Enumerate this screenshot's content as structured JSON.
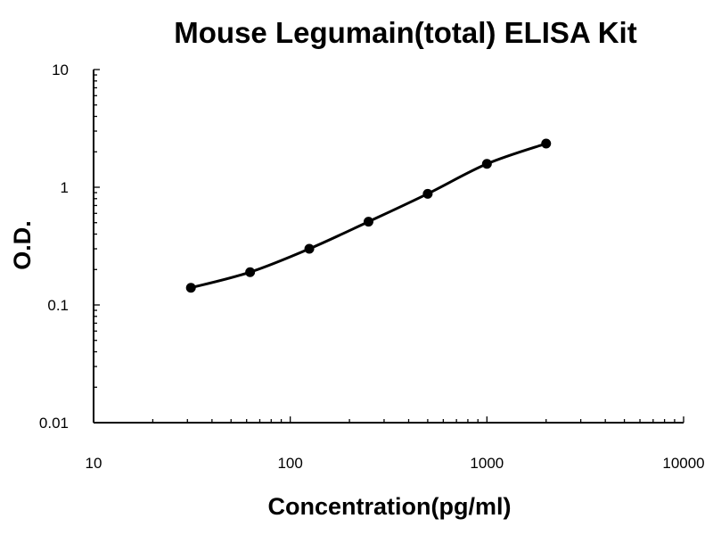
{
  "chart_data": {
    "type": "scatter",
    "title": "Mouse Legumain(total) ELISA Kit",
    "xlabel": "Concentration(pg/ml)",
    "ylabel": "O.D.",
    "xscale": "log",
    "yscale": "log",
    "xlim": [
      10,
      10000
    ],
    "ylim": [
      0.01,
      10
    ],
    "xticks": [
      "10",
      "100",
      "1000",
      "10000"
    ],
    "yticks": [
      "0.01",
      "0.1",
      "1",
      "10"
    ],
    "grid": false,
    "legend": false,
    "series": [
      {
        "fit_line": true,
        "x": [
          31.25,
          62.5,
          125,
          250,
          500,
          1000,
          2000
        ],
        "y": [
          0.14,
          0.19,
          0.3,
          0.51,
          0.88,
          1.58,
          2.35
        ]
      }
    ]
  }
}
